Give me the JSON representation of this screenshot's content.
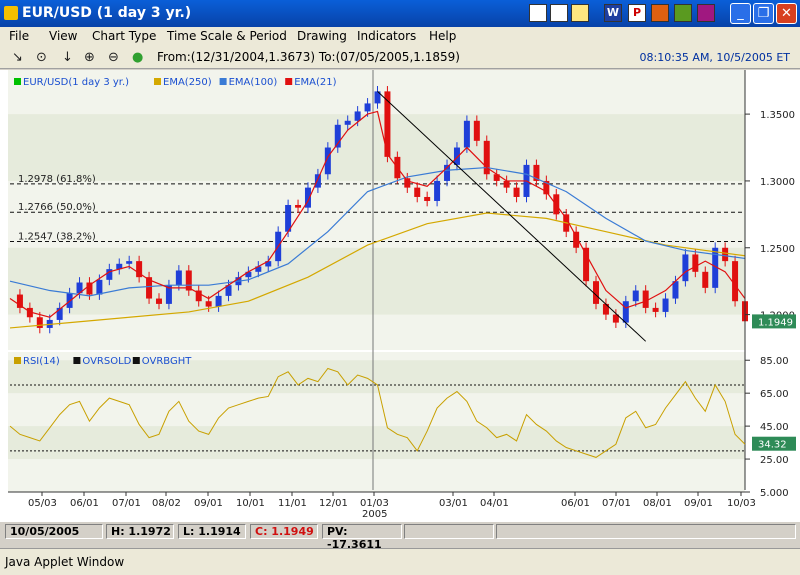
{
  "window": {
    "title": "EUR/USD  (1 day  3 yr.)",
    "minimize": "_",
    "restore": "❐",
    "close": "✕"
  },
  "toolbar_icons": [
    "W",
    "P",
    "S",
    "",
    "",
    "",
    ""
  ],
  "menu": [
    "File",
    "View",
    "Chart Type",
    "Time Scale & Period",
    "Drawing",
    "Indicators",
    "Help"
  ],
  "tools": [
    "↘",
    "⊙",
    "↓",
    "⊕",
    "⊖",
    "●"
  ],
  "range_text": "From:(12/31/2004,1.3673) To:(07/05/2005,1.1859)",
  "clock": "08:10:35 AM, 10/5/2005 ET",
  "legend_price": [
    "EUR/USD(1 day 3 yr.)",
    "EMA(250)",
    "EMA(100)",
    "EMA(21)"
  ],
  "legend_rsi": [
    "RSI(14)",
    "OVRSOLD",
    "OVRBGHT"
  ],
  "colors": {
    "up": "#1f3fd8",
    "down": "#e01010",
    "ema250": "#d4a800",
    "ema100": "#3a7bd5",
    "ema21": "#e01010",
    "rsi": "#c8a000",
    "price_badge": "#2e8b57",
    "trendline": "#000000",
    "legend_sq_price": "#00c000",
    "legend_sq_black": "#111111"
  },
  "fib_labels": [
    "1.2978 (61.8%)",
    "1.2766 (50.0%)",
    "1.2547 (38.2%)"
  ],
  "current_price": "1.1949",
  "current_rsi": "34.32",
  "chart_data": [
    {
      "type": "line",
      "title": "EUR/USD (1 day 3 yr.)",
      "x_ticks": [
        "05/03",
        "06/01",
        "07/01",
        "08/02",
        "09/01",
        "10/01",
        "11/01",
        "12/01",
        "01/03",
        "03/01",
        "04/01",
        "06/01",
        "07/01",
        "08/01",
        "09/01",
        "10/03"
      ],
      "year_marker": "2005",
      "y_ticks": [
        "1.3500",
        "1.3000",
        "1.2500",
        "1.2000"
      ],
      "ylim": [
        1.175,
        1.383
      ],
      "grid": false,
      "series": [
        {
          "name": "EUR/USD(1 day 3 yr.)",
          "style": "candles",
          "x": [
            0,
            10,
            20,
            30,
            40,
            50,
            60,
            70,
            80,
            90,
            100,
            110,
            120,
            130,
            140,
            150,
            160,
            170,
            180,
            190,
            200,
            210,
            220,
            230,
            240,
            250,
            260,
            270,
            280,
            290,
            300,
            310,
            320,
            330,
            340,
            350,
            360,
            370,
            380,
            390,
            400,
            410,
            420,
            430,
            440,
            450,
            460,
            470,
            480,
            490,
            500,
            510,
            520,
            530,
            540,
            550,
            560,
            570,
            580,
            590,
            600,
            610,
            620,
            630,
            640,
            650,
            660,
            670,
            680,
            690,
            700,
            710,
            720,
            730,
            740
          ],
          "values": [
            1.215,
            1.205,
            1.198,
            1.19,
            1.196,
            1.205,
            1.216,
            1.224,
            1.215,
            1.226,
            1.234,
            1.238,
            1.24,
            1.228,
            1.212,
            1.208,
            1.222,
            1.233,
            1.218,
            1.21,
            1.206,
            1.214,
            1.222,
            1.228,
            1.232,
            1.236,
            1.24,
            1.262,
            1.282,
            1.28,
            1.295,
            1.305,
            1.325,
            1.342,
            1.345,
            1.352,
            1.358,
            1.367,
            1.318,
            1.302,
            1.295,
            1.288,
            1.285,
            1.3,
            1.312,
            1.325,
            1.345,
            1.33,
            1.305,
            1.3,
            1.295,
            1.288,
            1.312,
            1.3,
            1.29,
            1.275,
            1.262,
            1.25,
            1.225,
            1.208,
            1.2,
            1.194,
            1.21,
            1.218,
            1.205,
            1.202,
            1.212,
            1.225,
            1.245,
            1.232,
            1.22,
            1.25,
            1.24,
            1.21,
            1.195
          ]
        },
        {
          "name": "EMA(21)",
          "x": [
            0,
            20,
            40,
            60,
            80,
            100,
            120,
            140,
            160,
            180,
            200,
            220,
            240,
            260,
            280,
            300,
            320,
            340,
            360,
            370,
            380,
            400,
            420,
            440,
            460,
            480,
            500,
            520,
            540,
            560,
            580,
            600,
            620,
            640,
            660,
            680,
            700,
            720,
            740
          ],
          "values": [
            1.212,
            1.202,
            1.198,
            1.21,
            1.222,
            1.232,
            1.236,
            1.226,
            1.22,
            1.22,
            1.212,
            1.222,
            1.232,
            1.24,
            1.262,
            1.285,
            1.318,
            1.338,
            1.35,
            1.352,
            1.32,
            1.3,
            1.296,
            1.31,
            1.325,
            1.31,
            1.3,
            1.3,
            1.292,
            1.272,
            1.245,
            1.218,
            1.205,
            1.21,
            1.218,
            1.232,
            1.24,
            1.232,
            1.212
          ]
        },
        {
          "name": "EMA(100)",
          "x": [
            0,
            40,
            80,
            120,
            160,
            200,
            240,
            280,
            320,
            360,
            400,
            440,
            480,
            520,
            560,
            600,
            640,
            680,
            720,
            740
          ],
          "values": [
            1.225,
            1.218,
            1.214,
            1.22,
            1.222,
            1.222,
            1.226,
            1.238,
            1.262,
            1.292,
            1.303,
            1.308,
            1.31,
            1.305,
            1.292,
            1.272,
            1.255,
            1.248,
            1.244,
            1.242
          ]
        },
        {
          "name": "EMA(250)",
          "x": [
            0,
            60,
            120,
            180,
            240,
            300,
            360,
            420,
            480,
            540,
            600,
            660,
            700,
            740
          ],
          "values": [
            1.19,
            1.194,
            1.198,
            1.202,
            1.21,
            1.228,
            1.252,
            1.268,
            1.276,
            1.272,
            1.262,
            1.252,
            1.248,
            1.244
          ]
        }
      ],
      "fib_levels": [
        1.2978,
        1.2766,
        1.2547
      ],
      "trendline": {
        "x": [
          370,
          640
        ],
        "values": [
          1.367,
          1.18
        ]
      }
    },
    {
      "type": "line",
      "title": "RSI(14)",
      "y_ticks": [
        "85.00",
        "65.00",
        "45.00",
        "25.00",
        "5.000"
      ],
      "ylim": [
        5,
        90
      ],
      "levels": {
        "OVRSOLD": 30,
        "OVRBGHT": 70
      },
      "series": [
        {
          "name": "RSI(14)",
          "x": [
            0,
            10,
            20,
            30,
            40,
            50,
            60,
            70,
            80,
            90,
            100,
            110,
            120,
            130,
            140,
            150,
            160,
            170,
            180,
            190,
            200,
            210,
            220,
            230,
            240,
            250,
            260,
            270,
            280,
            290,
            300,
            310,
            320,
            330,
            340,
            350,
            360,
            370,
            380,
            390,
            400,
            410,
            420,
            430,
            440,
            450,
            460,
            470,
            480,
            490,
            500,
            510,
            520,
            530,
            540,
            550,
            560,
            570,
            580,
            590,
            600,
            610,
            620,
            630,
            640,
            650,
            660,
            670,
            680,
            690,
            700,
            710,
            720,
            730,
            740
          ],
          "values": [
            45,
            40,
            38,
            36,
            44,
            52,
            58,
            60,
            48,
            56,
            62,
            60,
            58,
            46,
            38,
            40,
            54,
            60,
            48,
            42,
            40,
            50,
            56,
            58,
            60,
            62,
            63,
            75,
            78,
            70,
            74,
            72,
            80,
            78,
            70,
            76,
            74,
            70,
            44,
            40,
            38,
            30,
            42,
            56,
            62,
            66,
            60,
            48,
            44,
            38,
            40,
            36,
            52,
            46,
            42,
            36,
            32,
            30,
            28,
            26,
            30,
            34,
            50,
            54,
            44,
            46,
            56,
            64,
            72,
            62,
            54,
            70,
            60,
            40,
            34
          ]
        }
      ]
    }
  ],
  "status": {
    "date": "10/05/2005",
    "high": "H: 1.1972",
    "low": "L: 1.1914",
    "close": "C: 1.1949",
    "pv": "PV: -17.3611"
  },
  "java_text": "Java Applet Window"
}
